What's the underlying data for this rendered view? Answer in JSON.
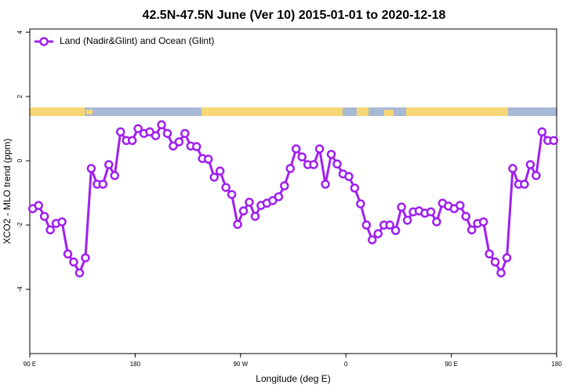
{
  "chart_data": {
    "type": "line",
    "title": "42.5N-47.5N June (Ver 10)   2015-01-01 to 2020-12-18",
    "x_label": "Longitude (deg E)",
    "y_label": "XCO2 - MLO trend (ppm)",
    "xlim": [
      90,
      540
    ],
    "xticks": [
      {
        "value": 90,
        "label": "90 E"
      },
      {
        "value": 180,
        "label": "180"
      },
      {
        "value": 270,
        "label": "90 W"
      },
      {
        "value": 360,
        "label": "0"
      },
      {
        "value": 450,
        "label": "90 E"
      },
      {
        "value": 540,
        "label": "180"
      }
    ],
    "ylim": [
      -6,
      4.1
    ],
    "yticks": [
      4,
      2,
      0,
      -2,
      -4
    ],
    "legend": "top-left",
    "x": [
      92.5,
      97.5,
      102.5,
      107.5,
      112.5,
      117.5,
      122.5,
      127.5,
      132.5,
      137.5,
      142.5,
      147.5,
      152.5,
      157.5,
      162.5,
      167.5,
      172.5,
      177.5,
      182.5,
      187.5,
      192.5,
      197.5,
      202.5,
      207.5,
      212.5,
      217.5,
      222.5,
      227.5,
      232.5,
      237.5,
      242.5,
      247.5,
      252.5,
      257.5,
      262.5,
      267.5,
      272.5,
      277.5,
      282.5,
      287.5,
      292.5,
      297.5,
      302.5,
      307.5,
      312.5,
      317.5,
      322.5,
      327.5,
      332.5,
      337.5,
      342.5,
      347.5,
      352.5,
      357.5,
      362.5,
      367.5,
      372.5,
      377.5,
      382.5,
      387.5,
      392.5,
      397.5,
      402.5,
      407.5,
      412.5,
      417.5,
      422.5,
      427.5,
      432.5,
      437.5,
      442.5,
      447.5,
      452.5,
      457.5,
      462.5,
      467.5,
      472.5,
      477.5,
      482.5,
      487.5,
      492.5,
      497.5,
      502.5,
      507.5,
      512.5,
      517.5,
      522.5,
      527.5,
      532.5,
      537.5
    ],
    "series": [
      {
        "name": "Land (Nadir&Glint) and Ocean (Glint)",
        "color": "#a020f0",
        "values": [
          -1.49,
          -1.39,
          -1.73,
          -2.15,
          -1.95,
          -1.9,
          -2.9,
          -3.15,
          -3.49,
          -3.02,
          -0.24,
          -0.73,
          -0.73,
          -0.12,
          -0.46,
          0.9,
          0.63,
          0.63,
          1.0,
          0.85,
          0.9,
          0.78,
          1.12,
          0.85,
          0.46,
          0.59,
          0.85,
          0.46,
          0.44,
          0.07,
          0.05,
          -0.51,
          -0.32,
          -0.83,
          -1.05,
          -1.98,
          -1.56,
          -1.29,
          -1.73,
          -1.39,
          -1.32,
          -1.24,
          -1.12,
          -0.78,
          -0.24,
          0.37,
          0.12,
          -0.12,
          -0.12,
          0.37,
          -0.73,
          0.2,
          -0.1,
          -0.41,
          -0.49,
          -0.85,
          -1.34,
          -2.0,
          -2.46,
          -2.27,
          -2.0,
          -2.0,
          -2.17,
          -1.44,
          -1.85,
          -1.59,
          -1.56,
          -1.63,
          -1.59,
          -1.9,
          -1.32,
          -1.41,
          -1.49,
          -1.39,
          -1.73,
          -2.15,
          -1.95,
          -1.9,
          -2.9,
          -3.15,
          -3.49,
          -3.02,
          -0.24,
          -0.73,
          -0.73,
          -0.12,
          -0.46,
          0.9,
          0.63,
          0.63
        ]
      }
    ]
  }
}
